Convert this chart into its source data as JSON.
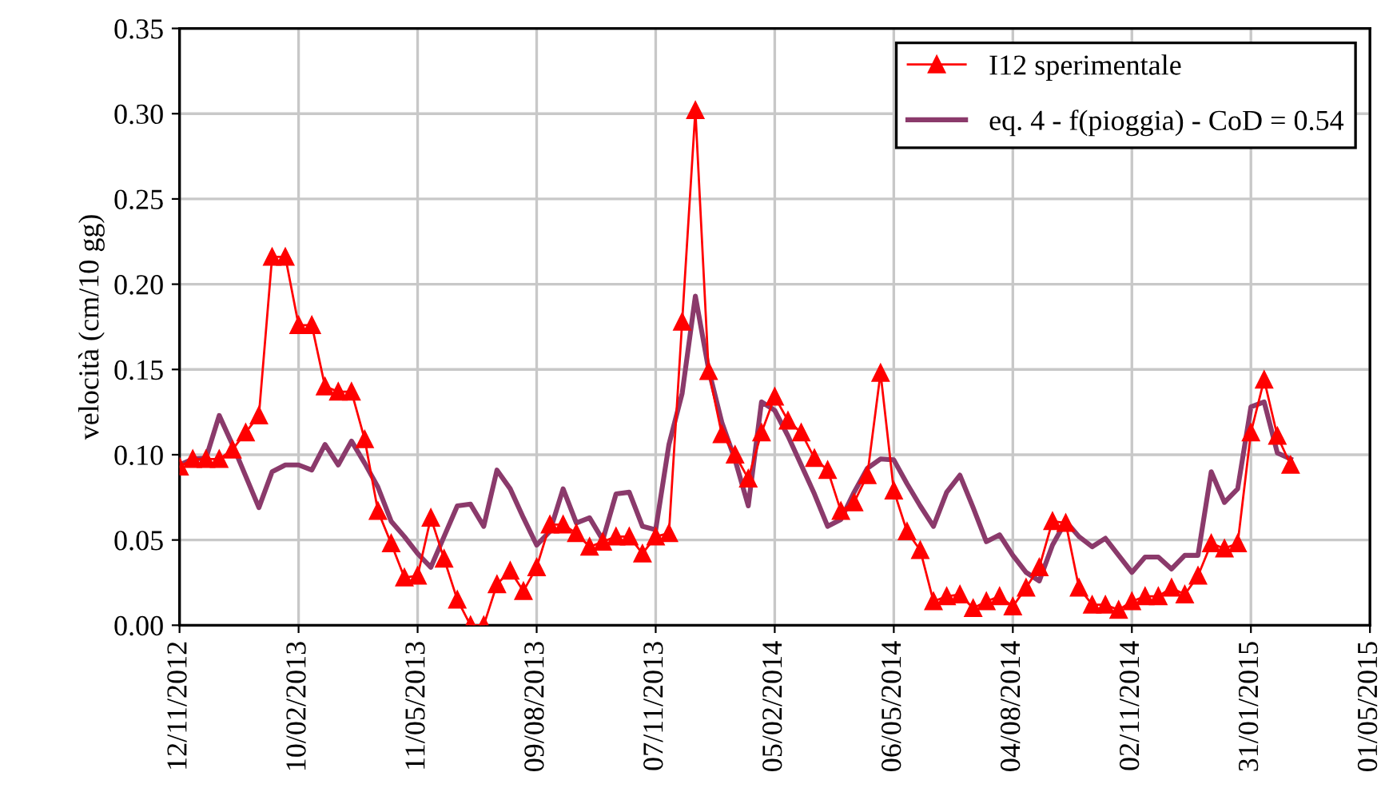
{
  "chart_data": {
    "type": "line",
    "ylabel": "velocità (cm/10 gg)",
    "x": [
      "2012-11-12",
      "2012-11-22",
      "2012-12-02",
      "2012-12-12",
      "2012-12-22",
      "2013-01-01",
      "2013-01-11",
      "2013-01-21",
      "2013-01-31",
      "2013-02-10",
      "2013-02-20",
      "2013-03-02",
      "2013-03-12",
      "2013-03-22",
      "2013-04-01",
      "2013-04-11",
      "2013-04-21",
      "2013-05-01",
      "2013-05-11",
      "2013-05-21",
      "2013-05-31",
      "2013-06-10",
      "2013-06-20",
      "2013-06-30",
      "2013-07-10",
      "2013-07-20",
      "2013-07-30",
      "2013-08-09",
      "2013-08-19",
      "2013-08-29",
      "2013-09-08",
      "2013-09-18",
      "2013-09-28",
      "2013-10-08",
      "2013-10-18",
      "2013-10-28",
      "2013-11-07",
      "2013-11-17",
      "2013-11-27",
      "2013-12-07",
      "2013-12-17",
      "2013-12-27",
      "2014-01-06",
      "2014-01-16",
      "2014-01-26",
      "2014-02-05",
      "2014-02-15",
      "2014-02-25",
      "2014-03-07",
      "2014-03-17",
      "2014-03-27",
      "2014-04-06",
      "2014-04-16",
      "2014-04-26",
      "2014-05-06",
      "2014-05-16",
      "2014-05-26",
      "2014-06-05",
      "2014-06-15",
      "2014-06-25",
      "2014-07-05",
      "2014-07-15",
      "2014-07-25",
      "2014-08-04",
      "2014-08-14",
      "2014-08-24",
      "2014-09-03",
      "2014-09-13",
      "2014-09-23",
      "2014-10-03",
      "2014-10-13",
      "2014-10-23",
      "2014-11-02",
      "2014-11-12",
      "2014-11-22",
      "2014-12-02",
      "2014-12-12",
      "2014-12-22",
      "2015-01-01",
      "2015-01-11",
      "2015-01-21",
      "2015-01-31",
      "2015-02-10",
      "2015-02-20",
      "2015-03-02"
    ],
    "series": [
      {
        "name": "I12 sperimentale",
        "color": "#ff0000",
        "marker": "triangle",
        "values": [
          0.093,
          0.0975,
          0.0975,
          0.0975,
          0.103,
          0.113,
          0.123,
          0.216,
          0.216,
          0.176,
          0.176,
          0.14,
          0.137,
          0.137,
          0.109,
          0.067,
          0.048,
          0.028,
          0.029,
          0.063,
          0.039,
          0.015,
          0,
          0,
          0.024,
          0.032,
          0.02,
          0.034,
          0.059,
          0.059,
          0.054,
          0.046,
          0.049,
          0.052,
          0.052,
          0.042,
          0.052,
          0.054,
          0.178,
          0.302,
          0.149,
          0.112,
          0.1,
          0.086,
          0.113,
          0.134,
          0.12,
          0.113,
          0.098,
          0.091,
          0.067,
          0.072,
          0.088,
          0.148,
          0.079,
          0.055,
          0.044,
          0.014,
          0.017,
          0.018,
          0.01,
          0.014,
          0.017,
          0.011,
          0.022,
          0.034,
          0.061,
          0.06,
          0.022,
          0.012,
          0.012,
          0.009,
          0.014,
          0.017,
          0.017,
          0.022,
          0.018,
          0.029,
          0.048,
          0.045,
          0.048,
          0.113,
          0.144,
          0.111,
          0.094
        ]
      },
      {
        "name": "eq. 4 - f(pioggia) - CoD = 0.54",
        "color": "#8b3a6b",
        "marker": "none",
        "values": [
          0.094,
          0.0975,
          0.098,
          0.123,
          0.106,
          0.0875,
          0.069,
          0.09,
          0.094,
          0.094,
          0.091,
          0.106,
          0.094,
          0.108,
          0.095,
          0.081,
          0.061,
          0.052,
          0.042,
          0.034,
          0.052,
          0.07,
          0.071,
          0.058,
          0.091,
          0.08,
          0.063,
          0.047,
          0.055,
          0.08,
          0.06,
          0.063,
          0.05,
          0.077,
          0.078,
          0.058,
          0.056,
          0.106,
          0.136,
          0.193,
          0.15,
          0.119,
          0.097,
          0.07,
          0.131,
          0.126,
          0.111,
          0.094,
          0.077,
          0.058,
          0.062,
          0.078,
          0.092,
          0.0975,
          0.097,
          0.083,
          0.07,
          0.058,
          0.078,
          0.088,
          0.069,
          0.049,
          0.053,
          0.041,
          0.031,
          0.026,
          0.047,
          0.061,
          0.052,
          0.046,
          0.051,
          0.041,
          0.031,
          0.04,
          0.04,
          0.033,
          0.041,
          0.041,
          0.09,
          0.072,
          0.08,
          0.128,
          0.131,
          0.101,
          0.0975
        ]
      }
    ],
    "xlim": [
      "2012-11-12",
      "2015-05-01"
    ],
    "xticks": [
      {
        "value": "2012-11-12",
        "label": "12/11/2012"
      },
      {
        "value": "2013-02-10",
        "label": "10/02/2013"
      },
      {
        "value": "2013-05-11",
        "label": "11/05/2013"
      },
      {
        "value": "2013-08-09",
        "label": "09/08/2013"
      },
      {
        "value": "2013-11-07",
        "label": "07/11/2013"
      },
      {
        "value": "2014-02-05",
        "label": "05/02/2014"
      },
      {
        "value": "2014-05-06",
        "label": "06/05/2014"
      },
      {
        "value": "2014-08-04",
        "label": "04/08/2014"
      },
      {
        "value": "2014-11-02",
        "label": "02/11/2014"
      },
      {
        "value": "2015-01-31",
        "label": "31/01/2015"
      },
      {
        "value": "2015-05-01",
        "label": "01/05/2015"
      }
    ],
    "ylim": [
      0,
      0.35
    ],
    "yticks": [
      {
        "value": 0,
        "label": "0.00"
      },
      {
        "value": 0.05,
        "label": "0.05"
      },
      {
        "value": 0.1,
        "label": "0.10"
      },
      {
        "value": 0.15,
        "label": "0.15"
      },
      {
        "value": 0.2,
        "label": "0.20"
      },
      {
        "value": 0.25,
        "label": "0.25"
      },
      {
        "value": 0.3,
        "label": "0.30"
      },
      {
        "value": 0.35,
        "label": "0.35"
      }
    ],
    "grid": true,
    "legend": "top right"
  }
}
